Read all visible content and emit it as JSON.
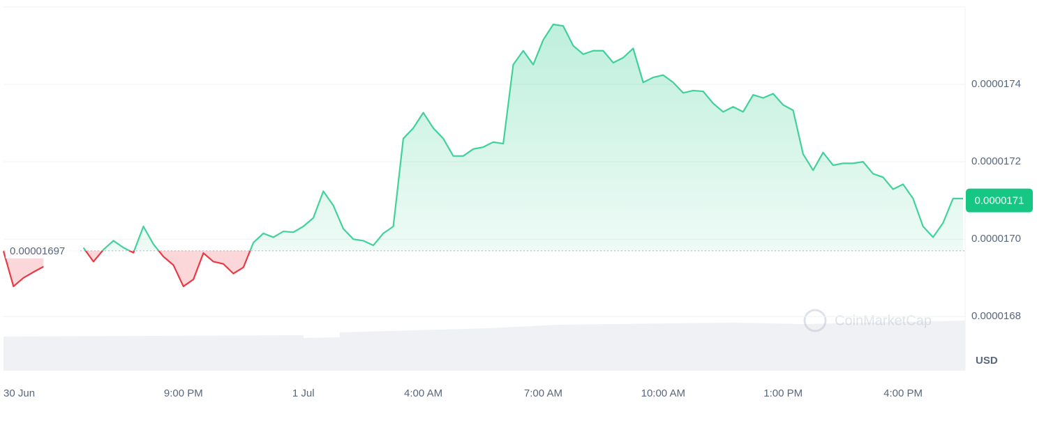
{
  "chart_data": {
    "type": "line",
    "categories": [
      "30 Jun",
      null,
      null,
      null,
      null,
      null,
      null,
      null,
      null,
      null,
      null,
      null,
      null,
      null,
      null,
      null,
      null,
      null,
      "9:00 PM",
      null,
      null,
      null,
      null,
      null,
      null,
      null,
      null,
      null,
      null,
      null,
      "1 Jul",
      null,
      null,
      null,
      null,
      null,
      null,
      null,
      null,
      null,
      null,
      null,
      "4:00 AM",
      null,
      null,
      null,
      null,
      null,
      null,
      null,
      null,
      null,
      null,
      null,
      "7:00 AM",
      null,
      null,
      null,
      null,
      null,
      null,
      null,
      null,
      null,
      null,
      null,
      "10:00 AM",
      null,
      null,
      null,
      null,
      null,
      null,
      null,
      null,
      null,
      null,
      null,
      "1:00 PM",
      null,
      null,
      null,
      null,
      null,
      null,
      null,
      null,
      null,
      null,
      null,
      "4:00 PM",
      null,
      null,
      null,
      null,
      null,
      null
    ],
    "values": [
      1.6969e-05,
      1.6878e-05,
      1.69e-05,
      1.6915e-05,
      1.6929e-05,
      null,
      null,
      null,
      1.6978e-05,
      1.6942e-05,
      1.6973e-05,
      1.6996e-05,
      1.6978e-05,
      1.6965e-05,
      1.7033e-05,
      1.6987e-05,
      1.6955e-05,
      1.6933e-05,
      1.6878e-05,
      1.6896e-05,
      1.6964e-05,
      1.6942e-05,
      1.6936e-05,
      1.6911e-05,
      1.6927e-05,
      1.6991e-05,
      1.7015e-05,
      1.7005e-05,
      1.702e-05,
      1.7018e-05,
      1.7033e-05,
      1.7055e-05,
      1.7124e-05,
      1.7087e-05,
      1.7027e-05,
      1.7e-05,
      1.6996e-05,
      1.6984e-05,
      1.7015e-05,
      1.7033e-05,
      1.726e-05,
      1.7287e-05,
      1.7327e-05,
      1.7287e-05,
      1.726e-05,
      1.7215e-05,
      1.7215e-05,
      1.7233e-05,
      1.7238e-05,
      1.7251e-05,
      1.7247e-05,
      1.7451e-05,
      1.7487e-05,
      1.7451e-05,
      1.7515e-05,
      1.7555e-05,
      1.7551e-05,
      1.75e-05,
      1.7478e-05,
      1.7487e-05,
      1.7487e-05,
      1.7456e-05,
      1.7469e-05,
      1.7493e-05,
      1.7405e-05,
      1.7418e-05,
      1.7424e-05,
      1.7405e-05,
      1.7378e-05,
      1.7384e-05,
      1.7382e-05,
      1.7351e-05,
      1.7329e-05,
      1.7342e-05,
      1.7329e-05,
      1.7373e-05,
      1.7365e-05,
      1.7376e-05,
      1.7347e-05,
      1.7333e-05,
      1.722e-05,
      1.7178e-05,
      1.7224e-05,
      1.7191e-05,
      1.7196e-05,
      1.7196e-05,
      1.72e-05,
      1.7169e-05,
      1.716e-05,
      1.7129e-05,
      1.7142e-05,
      1.7105e-05,
      1.7033e-05,
      1.7005e-05,
      1.7042e-05,
      1.7105e-05,
      1.7105e-05
    ],
    "baseline": 1.697e-05,
    "current_price": 1.71e-05,
    "up_color": "#16c784",
    "down_color": "#ea3943",
    "ylim": [
      1.666e-05,
      1.76e-05
    ],
    "yticks": [
      1.68e-05,
      {
        "value": 1.7e-05,
        "label": "0.0000170"
      },
      1.72e-05,
      1.74e-05
    ],
    "currency": "USD",
    "watermark": "CoinMarketCap",
    "grid": true
  }
}
